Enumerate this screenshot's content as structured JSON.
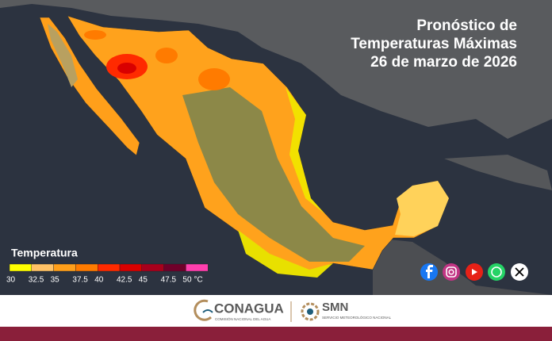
{
  "header": {
    "title_lines": [
      "Pronóstico de",
      "Temperaturas Máximas",
      "26 de marzo de 2026"
    ]
  },
  "legend": {
    "title": "Temperatura",
    "labels": [
      30,
      32.5,
      35,
      37.5,
      40,
      42.5,
      45,
      47.5,
      50
    ],
    "unit": "°C",
    "colors": [
      "#ffff00",
      "#ffc266",
      "#ff9f1a",
      "#ff7b00",
      "#ff2a00",
      "#d90000",
      "#a8001c",
      "#70002a",
      "#ff3fae"
    ]
  },
  "footer": {
    "logos": [
      {
        "name": "CONAGUA",
        "subtitle": "COMISIÓN NACIONAL DEL AGUA"
      },
      {
        "name": "SMN",
        "subtitle": "SERVICIO METEOROLÓGICO NACIONAL"
      }
    ]
  }
}
